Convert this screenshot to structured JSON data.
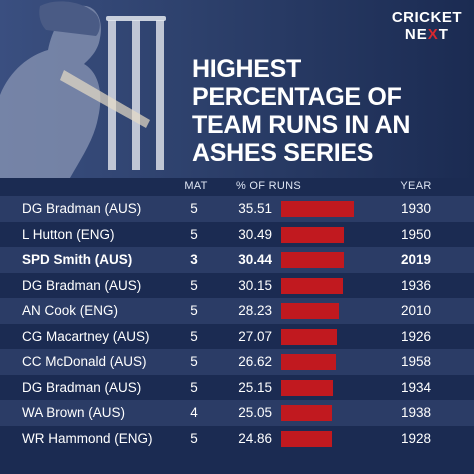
{
  "brand": {
    "line1": "CRICKET",
    "line2a": "NE",
    "line2b": "X",
    "line2c": "T"
  },
  "title": "HIGHEST PERCENTAGE OF TEAM RUNS IN AN ASHES SERIES",
  "headers": {
    "mat": "MAT",
    "pct": "% OF RUNS",
    "year": "YEAR"
  },
  "colors": {
    "background": "#1b2b52",
    "row_alt": "#2b3c66",
    "bar": "#c1191f",
    "accent": "#d8282e"
  },
  "chart_data": {
    "type": "table",
    "title": "HIGHEST PERCENTAGE OF TEAM RUNS IN AN ASHES SERIES",
    "columns": [
      "",
      "MAT",
      "% OF RUNS",
      "YEAR"
    ],
    "highlight_index": 2,
    "rows": [
      {
        "name": "DG Bradman (AUS)",
        "mat": "5",
        "pct": 35.51,
        "pct_label": "35.51",
        "year": "1930"
      },
      {
        "name": "L Hutton (ENG)",
        "mat": "5",
        "pct": 30.49,
        "pct_label": "30.49",
        "year": "1950"
      },
      {
        "name": "SPD Smith (AUS)",
        "mat": "3",
        "pct": 30.44,
        "pct_label": "30.44",
        "year": "2019"
      },
      {
        "name": "DG Bradman (AUS)",
        "mat": "5",
        "pct": 30.15,
        "pct_label": "30.15",
        "year": "1936"
      },
      {
        "name": "AN Cook (ENG)",
        "mat": "5",
        "pct": 28.23,
        "pct_label": "28.23",
        "year": "2010"
      },
      {
        "name": "CG Macartney (AUS)",
        "mat": "5",
        "pct": 27.07,
        "pct_label": "27.07",
        "year": "1926"
      },
      {
        "name": "CC McDonald (AUS)",
        "mat": "5",
        "pct": 26.62,
        "pct_label": "26.62",
        "year": "1958"
      },
      {
        "name": "DG Bradman (AUS)",
        "mat": "5",
        "pct": 25.15,
        "pct_label": "25.15",
        "year": "1934"
      },
      {
        "name": "WA Brown (AUS)",
        "mat": "4",
        "pct": 25.05,
        "pct_label": "25.05",
        "year": "1938"
      },
      {
        "name": "WR Hammond (ENG)",
        "mat": "5",
        "pct": 24.86,
        "pct_label": "24.86",
        "year": "1928"
      }
    ]
  }
}
